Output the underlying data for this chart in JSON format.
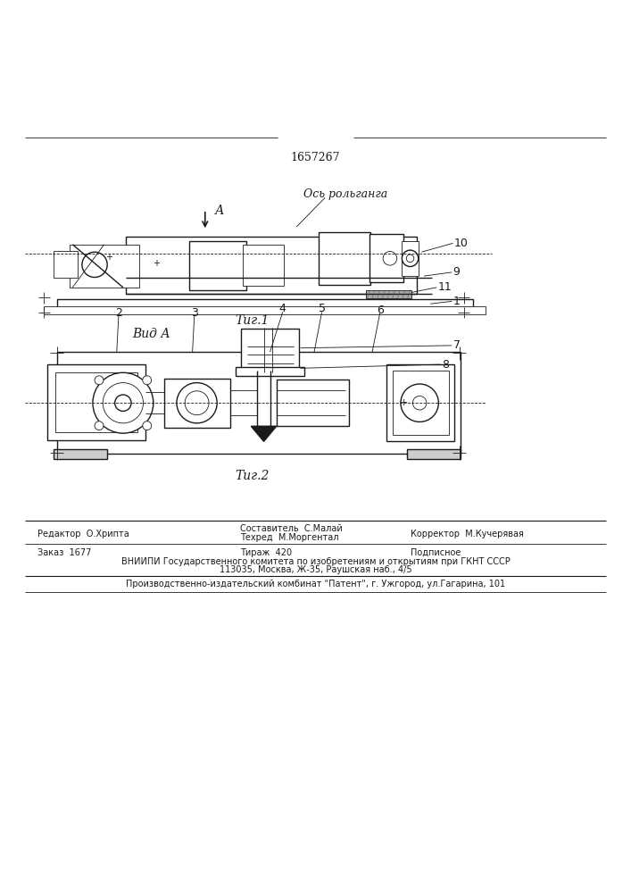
{
  "title": "1657267",
  "fig1_caption": "Τиг.1",
  "fig2_caption": "Τиг.2",
  "view_label": "Вид А",
  "axis_label": "Ось рольганга",
  "arrow_label": "А",
  "footer": {
    "line1_left": "Редактор  О.Хрипта",
    "line1_mid1": "Составитель  С.Малай",
    "line1_mid2": "Техред  М.Моргентал",
    "line1_right": "Корректор  М.Кучерявая",
    "line2_left": "Заказ  1677",
    "line2_mid": "Тираж  420",
    "line2_right": "Подписное",
    "line3": "ВНИИПИ Государственного комитета по изобретениям и открытиям при ГКНТ СССР",
    "line4": "113035, Москва, Ж-35, Раушская наб., 4/5",
    "line5": "Производственно-издательский комбинат \"Патент\", г. Ужгород, ул.Гагарина, 101"
  },
  "bg_color": "#ffffff",
  "line_color": "#1a1a1a",
  "text_color": "#1a1a1a"
}
